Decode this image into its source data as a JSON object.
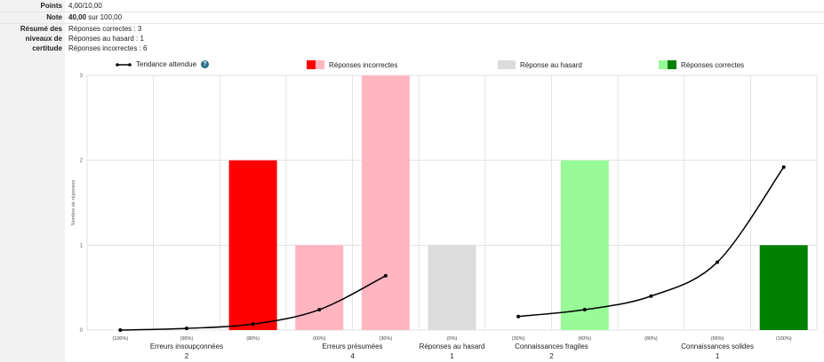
{
  "summary": {
    "points_label": "Points",
    "points_value": "4,00/10,00",
    "note_label": "Note",
    "note_bold": "40,00",
    "note_rest": "sur 100,00",
    "resume_label_1": "Résumé des",
    "resume_label_2": "niveaux de",
    "resume_label_3": "certitude",
    "resume_lines": [
      "Réponses correctes : 3",
      "Réponses au hasard : 1",
      "Réponses incorrectes : 6"
    ]
  },
  "legend": {
    "trend": "Tendance attendue",
    "incorrect": "Réponses incorrectes",
    "random": "Réponse au hasard",
    "correct": "Réponses correctes"
  },
  "colors": {
    "red": "#ff0000",
    "pink": "#ffb6c1",
    "gray": "#dcdcdc",
    "lightgreen": "#98fb98",
    "green": "#008000",
    "line": "#000000",
    "help": "#2a6f8a"
  },
  "chart_data": {
    "type": "bar",
    "ylabel": "Nombre de réponses",
    "ylim": [
      0,
      3
    ],
    "yticks": [
      0,
      1,
      2,
      3
    ],
    "grid": true,
    "categories": [
      "(100%)",
      "(95%)",
      "(80%)",
      "(60%)",
      "(30%)",
      "(0%)",
      "(30%)",
      "(60%)",
      "(80%)",
      "(95%)",
      "(100%)"
    ],
    "values": [
      0,
      0,
      2,
      1,
      3,
      1,
      0,
      2,
      0,
      0,
      1
    ],
    "bar_colors": [
      "red",
      "red",
      "red",
      "pink",
      "pink",
      "gray",
      "lightgreen",
      "lightgreen",
      "green",
      "green",
      "green"
    ],
    "groups": [
      {
        "label": "Erreurs insoupçonnées",
        "count": "2",
        "start": 0,
        "end": 2
      },
      {
        "label": "Erreurs présumées",
        "count": "4",
        "start": 3,
        "end": 4
      },
      {
        "label": "Réponses au hasard",
        "count": "1",
        "start": 5,
        "end": 5
      },
      {
        "label": "Connaissances fragiles",
        "count": "2",
        "start": 6,
        "end": 7
      },
      {
        "label": "Connaissances solides",
        "count": "1",
        "start": 8,
        "end": 10
      }
    ],
    "trend_series": [
      {
        "x": [
          0,
          1,
          2,
          3,
          4
        ],
        "y": [
          0,
          0.02,
          0.07,
          0.24,
          0.64
        ]
      },
      {
        "x": [
          6,
          7,
          8,
          9,
          10
        ],
        "y": [
          0.16,
          0.24,
          0.4,
          0.8,
          1.92
        ]
      }
    ]
  }
}
